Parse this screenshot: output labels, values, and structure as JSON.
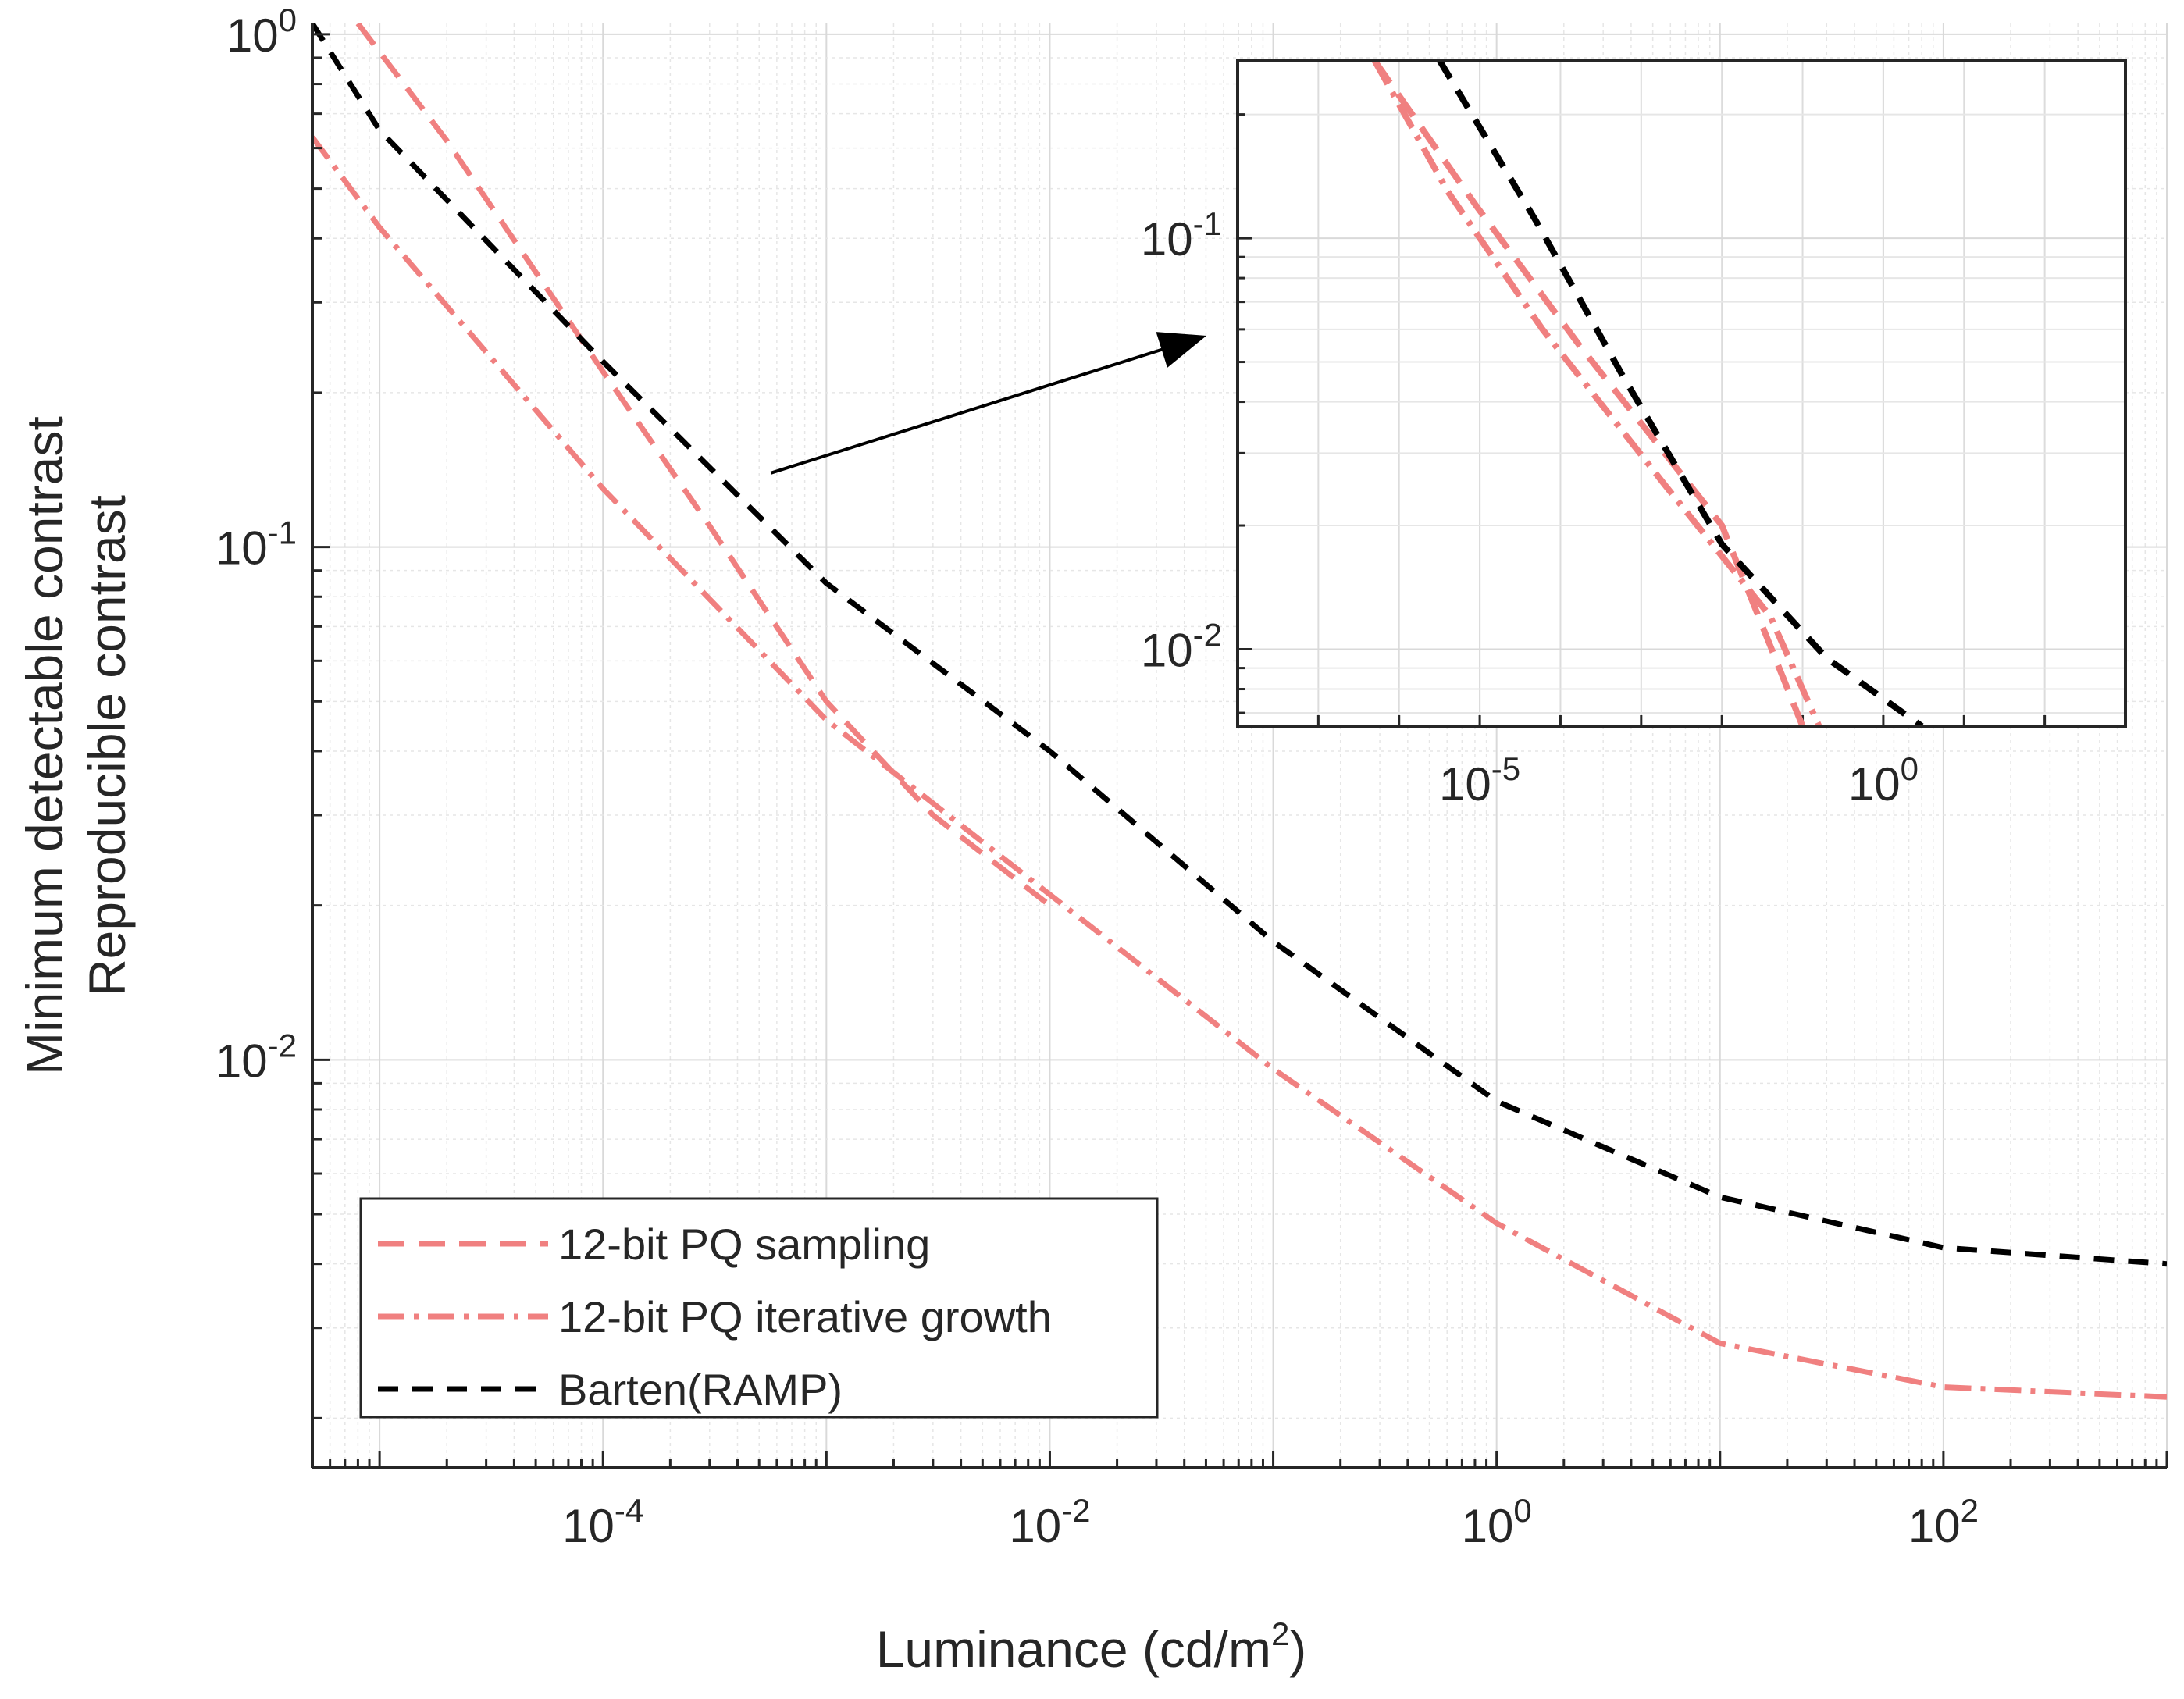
{
  "chart_data": {
    "type": "line",
    "log_x": true,
    "log_y": true,
    "xlabel": "Luminance (cd/m²)",
    "xlabel_parts": {
      "base": "Luminance (cd/m",
      "sup": "2",
      "tail": ")"
    },
    "ylabel_lines": [
      "Minimum detectable contrast",
      "Reproducible contrast"
    ],
    "xlim": [
      5e-06,
      1000
    ],
    "ylim": [
      0.0016,
      1.05
    ],
    "grid": true,
    "minor_grid": true,
    "x_ticks": [
      {
        "value": 0.0001,
        "base": "10",
        "exp": "-4"
      },
      {
        "value": 0.01,
        "base": "10",
        "exp": "-2"
      },
      {
        "value": 1,
        "base": "10",
        "exp": "0"
      },
      {
        "value": 100,
        "base": "10",
        "exp": "2"
      }
    ],
    "y_ticks": [
      {
        "value": 0.01,
        "base": "10",
        "exp": "-2"
      },
      {
        "value": 0.1,
        "base": "10",
        "exp": "-1"
      },
      {
        "value": 1,
        "base": "10",
        "exp": "0"
      }
    ],
    "series": [
      {
        "name": "12-bit PQ sampling",
        "color": "#f08080",
        "dash": "long-dash",
        "x": [
          8e-06,
          2e-05,
          0.0001,
          0.0003,
          0.001,
          0.003,
          0.01
        ],
        "y": [
          1.05,
          0.62,
          0.22,
          0.11,
          0.05,
          0.03,
          0.02
        ]
      },
      {
        "name": "12-bit PQ iterative growth",
        "color": "#f08080",
        "dash": "dash-dot",
        "x": [
          5e-06,
          1e-05,
          0.0001,
          0.001,
          0.01,
          0.1,
          1,
          10,
          100,
          1000
        ],
        "y": [
          0.63,
          0.42,
          0.13,
          0.046,
          0.021,
          0.0096,
          0.0048,
          0.0028,
          0.0023,
          0.0022
        ]
      },
      {
        "name": "Barten(RAMP)",
        "color": "#000000",
        "dash": "dash",
        "x": [
          5e-06,
          1e-05,
          0.0001,
          0.001,
          0.01,
          0.1,
          1,
          10,
          100,
          1000
        ],
        "y": [
          1.05,
          0.65,
          0.23,
          0.085,
          0.04,
          0.017,
          0.0083,
          0.0054,
          0.0043,
          0.004
        ]
      }
    ],
    "legend": {
      "placement": "bottom-left",
      "entries": [
        "12-bit PQ sampling",
        "12-bit PQ iterative growth",
        "Barten(RAMP)"
      ]
    },
    "inset": {
      "type": "line",
      "log_x": true,
      "log_y": true,
      "xlim": [
        1e-08,
        1000
      ],
      "ylim": [
        0.0065,
        0.27
      ],
      "x_ticks": [
        {
          "value": 1e-05,
          "base": "10",
          "exp": "-5"
        },
        {
          "value": 1,
          "base": "10",
          "exp": "0"
        }
      ],
      "y_ticks": [
        {
          "value": 0.01,
          "base": "10",
          "exp": "-2"
        },
        {
          "value": 0.1,
          "base": "10",
          "exp": "-1"
        }
      ],
      "series": [
        {
          "name": "12-bit PQ sampling",
          "x": [
            5e-07,
            9e-06,
            0.00017,
            0.01,
            0.1
          ],
          "y": [
            0.27,
            0.12,
            0.055,
            0.02,
            0.0065
          ]
        },
        {
          "name": "12-bit PQ iterative growth",
          "x": [
            5e-07,
            4e-06,
            6e-05,
            0.002,
            0.04,
            0.16
          ],
          "y": [
            0.27,
            0.13,
            0.06,
            0.025,
            0.012,
            0.0065
          ]
        },
        {
          "name": "Barten(RAMP)",
          "x": [
            3.2e-06,
            5e-05,
            0.0006,
            0.01,
            0.2,
            3
          ],
          "y": [
            0.27,
            0.11,
            0.046,
            0.018,
            0.0095,
            0.0065
          ]
        }
      ]
    },
    "annotation": {
      "type": "arrow",
      "from": {
        "x": 0.0005,
        "y": 0.13
      },
      "to": "inset"
    }
  }
}
